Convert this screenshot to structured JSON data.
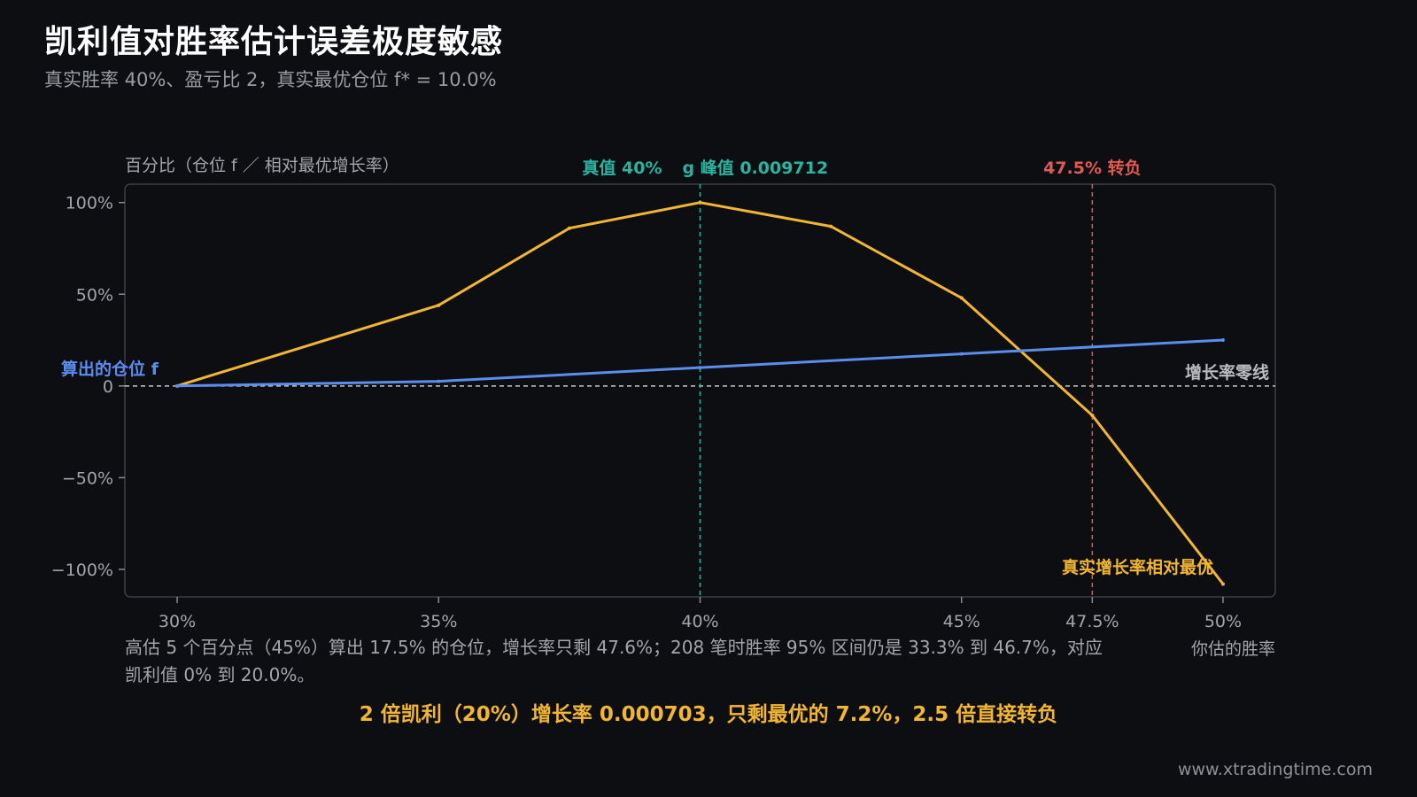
{
  "title": "凯利值对胜率估计误差极度敏感",
  "subtitle": "真实胜率 40%、盈亏比 2，真实最优仓位 f* = 10.0%",
  "footer": {
    "note": "高估 5 个百分点（45%）算出 17.5% 的仓位，增长率只剩 47.6%；208 笔时胜率 95% 区间仍是 33.3% 到 46.7%，对应凯利值 0% 到 20.0%。",
    "highlight": "2 倍凯利（20%）增长率 0.000703，只剩最优的 7.2%，2.5 倍直接转负",
    "website": "www.xtradingtime.com"
  },
  "colors": {
    "background": "#0d0e12",
    "growth": "#f2b632",
    "fraction": "#5b8def",
    "true_value": "#2ab3a0",
    "turn_negative": "#e05a52",
    "zero_line": "#c9c9c9"
  },
  "chart_data": {
    "type": "line",
    "ylabel": "百分比（仓位 f ／ 相对最优增长率）",
    "xlabel": "你估的胜率",
    "x_ticks": [
      {
        "value": 30,
        "label": "30%"
      },
      {
        "value": 35,
        "label": "35%"
      },
      {
        "value": 40,
        "label": "40%"
      },
      {
        "value": 45,
        "label": "45%"
      },
      {
        "value": 47.5,
        "label": "47.5%"
      },
      {
        "value": 50,
        "label": "50%"
      }
    ],
    "y_ticks": [
      {
        "value": 100,
        "label": "100%"
      },
      {
        "value": 50,
        "label": "50%"
      },
      {
        "value": 0,
        "label": "0"
      },
      {
        "value": -50,
        "label": "−50%"
      },
      {
        "value": -100,
        "label": "−100%"
      }
    ],
    "xlim": [
      29,
      51
    ],
    "ylim": [
      -115,
      110
    ],
    "series": [
      {
        "name": "真实增长率相对最优",
        "color": "#f2b632",
        "x": [
          30,
          35,
          37.5,
          40,
          42.5,
          45,
          47.5,
          50
        ],
        "y": [
          0,
          44,
          86,
          100,
          87,
          48,
          -16,
          -108
        ]
      },
      {
        "name": "算出的仓位 f",
        "color": "#5b8def",
        "x": [
          30,
          35,
          40,
          45,
          50
        ],
        "y": [
          0,
          2.5,
          10,
          17.5,
          25
        ]
      }
    ],
    "reference_lines": {
      "true_value": {
        "x": 40,
        "label": "真值 40%",
        "peak_label": "g 峰值 0.009712"
      },
      "turn_negative": {
        "x": 47.5,
        "label": "47.5% 转负"
      },
      "zero_line": {
        "y": 0,
        "label": "增长率零线"
      }
    },
    "grid": false
  }
}
